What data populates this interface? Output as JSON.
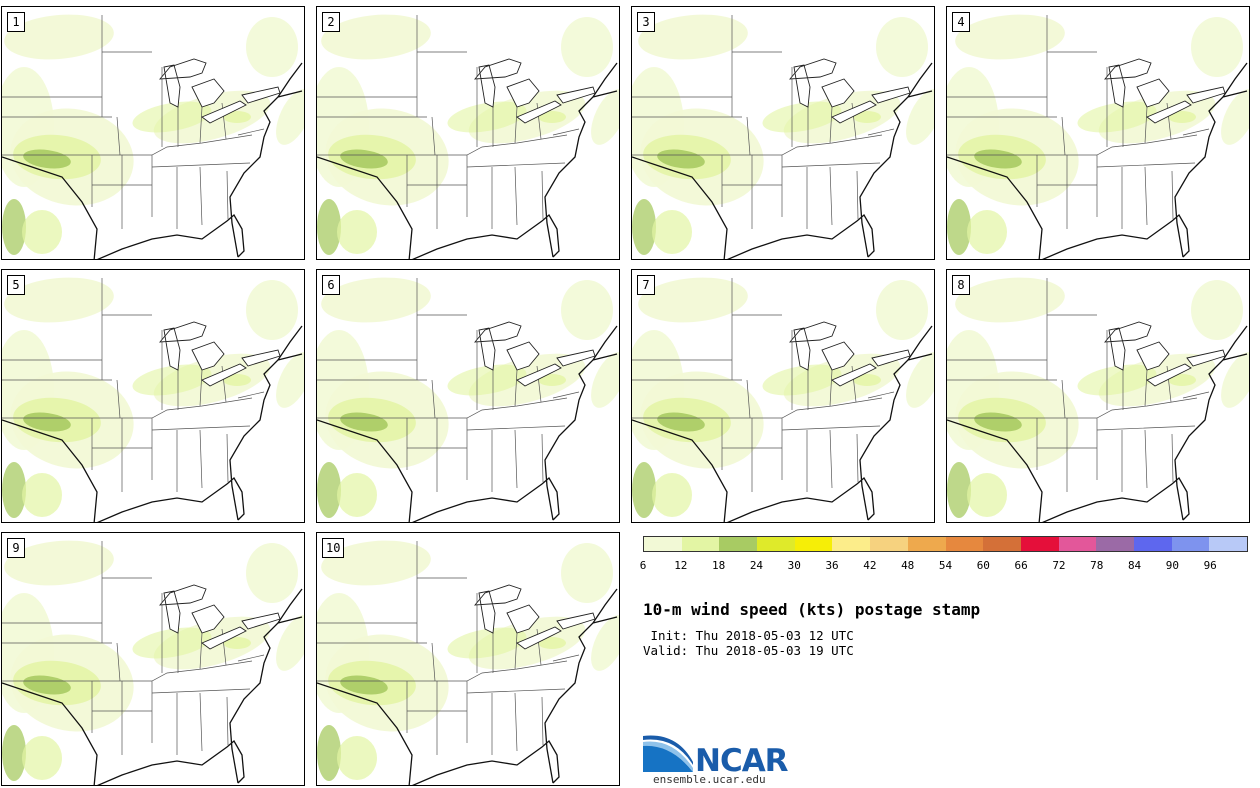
{
  "figure": {
    "title": "10-m wind speed (kts) postage stamp",
    "init_line": " Init: Thu 2018-05-03 12 UTC",
    "valid_line": "Valid: Thu 2018-05-03 19 UTC"
  },
  "members": [
    "1",
    "2",
    "3",
    "4",
    "5",
    "6",
    "7",
    "8",
    "9",
    "10"
  ],
  "colorbar": {
    "units": "kts",
    "ticks": [
      "6",
      "12",
      "18",
      "24",
      "30",
      "36",
      "42",
      "48",
      "54",
      "60",
      "66",
      "72",
      "78",
      "84",
      "90",
      "96"
    ],
    "colors": [
      "#f2f9d6",
      "#e3f5a4",
      "#a8cb63",
      "#dfea2a",
      "#f6ee07",
      "#fced8a",
      "#f6d27f",
      "#eea94d",
      "#e6883e",
      "#d47038",
      "#e50f3a",
      "#e3579a",
      "#9b6aa6",
      "#5e67ee",
      "#7e93ee",
      "#b8c9f7"
    ]
  },
  "branding": {
    "logo_text": "NCAR",
    "url": "ensemble.ucar.edu"
  }
}
